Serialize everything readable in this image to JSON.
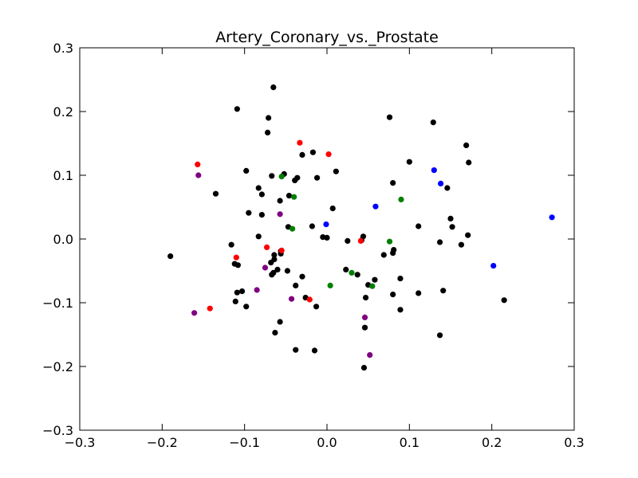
{
  "chart_data": {
    "type": "scatter",
    "title": "Artery_Coronary_vs._Prostate",
    "xlabel": "",
    "ylabel": "",
    "xlim": [
      -0.3,
      0.3
    ],
    "ylim": [
      -0.3,
      0.3
    ],
    "x_ticks": [
      -0.3,
      -0.2,
      -0.1,
      0.0,
      0.1,
      0.2,
      0.3
    ],
    "y_ticks": [
      -0.3,
      -0.2,
      -0.1,
      0.0,
      0.1,
      0.2,
      0.3
    ],
    "x_tick_labels": [
      "−0.3",
      "−0.2",
      "−0.1",
      "0.0",
      "0.1",
      "0.2",
      "0.3"
    ],
    "y_tick_labels": [
      "−0.3",
      "−0.2",
      "−0.1",
      "0.0",
      "0.1",
      "0.2",
      "0.3"
    ],
    "grid": false,
    "series": [
      {
        "color": "#000000",
        "points": [
          [
            -0.065,
            0.238
          ],
          [
            -0.109,
            0.204
          ],
          [
            -0.071,
            0.19
          ],
          [
            -0.072,
            0.167
          ],
          [
            0.076,
            0.191
          ],
          [
            0.129,
            0.183
          ],
          [
            0.169,
            0.147
          ],
          [
            0.172,
            0.12
          ],
          [
            0.1,
            0.121
          ],
          [
            -0.017,
            0.136
          ],
          [
            -0.03,
            0.132
          ],
          [
            -0.098,
            0.107
          ],
          [
            -0.052,
            0.102
          ],
          [
            -0.067,
            0.099
          ],
          [
            -0.036,
            0.096
          ],
          [
            -0.039,
            0.092
          ],
          [
            -0.012,
            0.096
          ],
          [
            0.011,
            0.106
          ],
          [
            0.08,
            0.088
          ],
          [
            0.146,
            0.08
          ],
          [
            -0.135,
            0.071
          ],
          [
            -0.083,
            0.08
          ],
          [
            -0.079,
            0.07
          ],
          [
            -0.046,
            0.068
          ],
          [
            -0.057,
            0.06
          ],
          [
            0.007,
            0.048
          ],
          [
            -0.095,
            0.041
          ],
          [
            -0.079,
            0.038
          ],
          [
            0.15,
            0.032
          ],
          [
            0.111,
            0.02
          ],
          [
            0.152,
            0.019
          ],
          [
            -0.047,
            0.019
          ],
          [
            -0.018,
            0.02
          ],
          [
            0.171,
            0.006
          ],
          [
            0.137,
            -0.005
          ],
          [
            0.163,
            -0.009
          ],
          [
            -0.083,
            0.004
          ],
          [
            -0.005,
            0.003
          ],
          [
            0.0,
            0.002
          ],
          [
            0.025,
            -0.003
          ],
          [
            0.044,
            0.004
          ],
          [
            -0.116,
            -0.009
          ],
          [
            -0.056,
            -0.019
          ],
          [
            -0.056,
            -0.023
          ],
          [
            0.081,
            -0.017
          ],
          [
            0.08,
            -0.022
          ],
          [
            0.069,
            -0.025
          ],
          [
            -0.064,
            -0.025
          ],
          [
            -0.064,
            -0.032
          ],
          [
            -0.068,
            -0.037
          ],
          [
            -0.112,
            -0.039
          ],
          [
            -0.108,
            -0.041
          ],
          [
            0.023,
            -0.048
          ],
          [
            0.037,
            -0.056
          ],
          [
            -0.06,
            -0.048
          ],
          [
            -0.065,
            -0.053
          ],
          [
            -0.067,
            -0.056
          ],
          [
            -0.048,
            -0.05
          ],
          [
            -0.03,
            -0.059
          ],
          [
            0.058,
            -0.064
          ],
          [
            0.089,
            -0.062
          ],
          [
            -0.038,
            -0.073
          ],
          [
            0.05,
            -0.072
          ],
          [
            -0.103,
            -0.082
          ],
          [
            -0.109,
            -0.084
          ],
          [
            -0.026,
            -0.092
          ],
          [
            0.047,
            -0.092
          ],
          [
            0.08,
            -0.087
          ],
          [
            0.111,
            -0.085
          ],
          [
            0.141,
            -0.081
          ],
          [
            0.215,
            -0.096
          ],
          [
            -0.111,
            -0.098
          ],
          [
            -0.098,
            -0.106
          ],
          [
            -0.013,
            -0.106
          ],
          [
            0.089,
            -0.111
          ],
          [
            -0.057,
            -0.13
          ],
          [
            0.046,
            -0.139
          ],
          [
            -0.063,
            -0.147
          ],
          [
            0.137,
            -0.151
          ],
          [
            -0.038,
            -0.174
          ],
          [
            -0.015,
            -0.175
          ],
          [
            0.045,
            -0.202
          ],
          [
            -0.19,
            -0.027
          ],
          [
            0.042,
            -0.002
          ]
        ]
      },
      {
        "color": "#ff0000",
        "points": [
          [
            -0.157,
            0.117
          ],
          [
            -0.033,
            0.151
          ],
          [
            0.002,
            0.133
          ],
          [
            -0.11,
            -0.029
          ],
          [
            -0.073,
            -0.013
          ],
          [
            -0.055,
            -0.018
          ],
          [
            0.041,
            -0.003
          ],
          [
            -0.021,
            -0.095
          ],
          [
            -0.142,
            -0.109
          ]
        ]
      },
      {
        "color": "#008000",
        "points": [
          [
            -0.055,
            0.098
          ],
          [
            -0.04,
            0.066
          ],
          [
            0.09,
            0.062
          ],
          [
            -0.042,
            0.016
          ],
          [
            0.076,
            -0.004
          ],
          [
            0.03,
            -0.053
          ],
          [
            0.004,
            -0.073
          ],
          [
            0.055,
            -0.074
          ]
        ]
      },
      {
        "color": "#0000ff",
        "points": [
          [
            0.13,
            0.108
          ],
          [
            0.138,
            0.087
          ],
          [
            0.059,
            0.051
          ],
          [
            0.273,
            0.034
          ],
          [
            -0.001,
            0.023
          ],
          [
            0.202,
            -0.042
          ]
        ]
      },
      {
        "color": "#800080",
        "points": [
          [
            -0.156,
            0.1
          ],
          [
            -0.057,
            0.039
          ],
          [
            -0.075,
            -0.045
          ],
          [
            -0.085,
            -0.08
          ],
          [
            -0.043,
            -0.094
          ],
          [
            -0.161,
            -0.116
          ],
          [
            0.046,
            -0.123
          ],
          [
            0.052,
            -0.182
          ]
        ]
      }
    ]
  }
}
